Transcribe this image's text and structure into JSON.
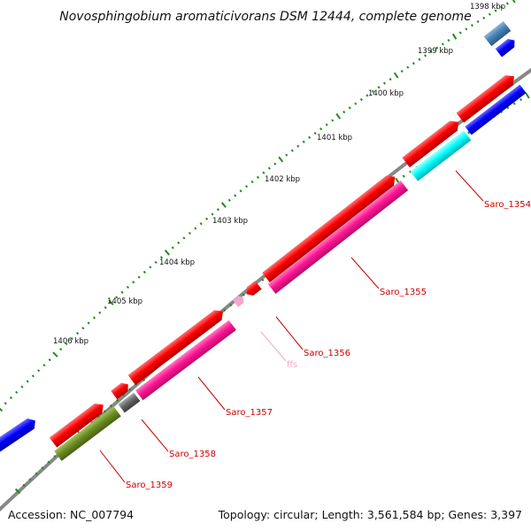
{
  "title": "Novosphingobium aromaticivorans DSM 12444, complete genome",
  "footer": {
    "accession": "Accession: NC_007794",
    "summary": "Topology: circular; Length: 3,561,584 bp; Genes: 3,397"
  },
  "kbp_labels": [
    "1398 kbp",
    "1399 kbp",
    "1400 kbp",
    "1401 kbp",
    "1402 kbp",
    "1403 kbp",
    "1404 kbp",
    "1405 kbp",
    "1406 kbp"
  ],
  "gene_labels": [
    "Saro_1354",
    "Saro_1355",
    "Saro_1356",
    "ffs",
    "Saro_1357",
    "Saro_1358",
    "Saro_1359"
  ],
  "colors": {
    "cds_red": "#ff0000",
    "rna_magenta": "#ff1493",
    "cyan": "#00ffff",
    "blue": "#0000ff",
    "steel_blue": "#4682b4",
    "gray_pseudo": "#666666",
    "olive": "#6b8e23",
    "backbone": "#888888",
    "tick_green": "#228b22",
    "label_red": "#cc0000",
    "ffs_pink": "#f4a6c8"
  }
}
